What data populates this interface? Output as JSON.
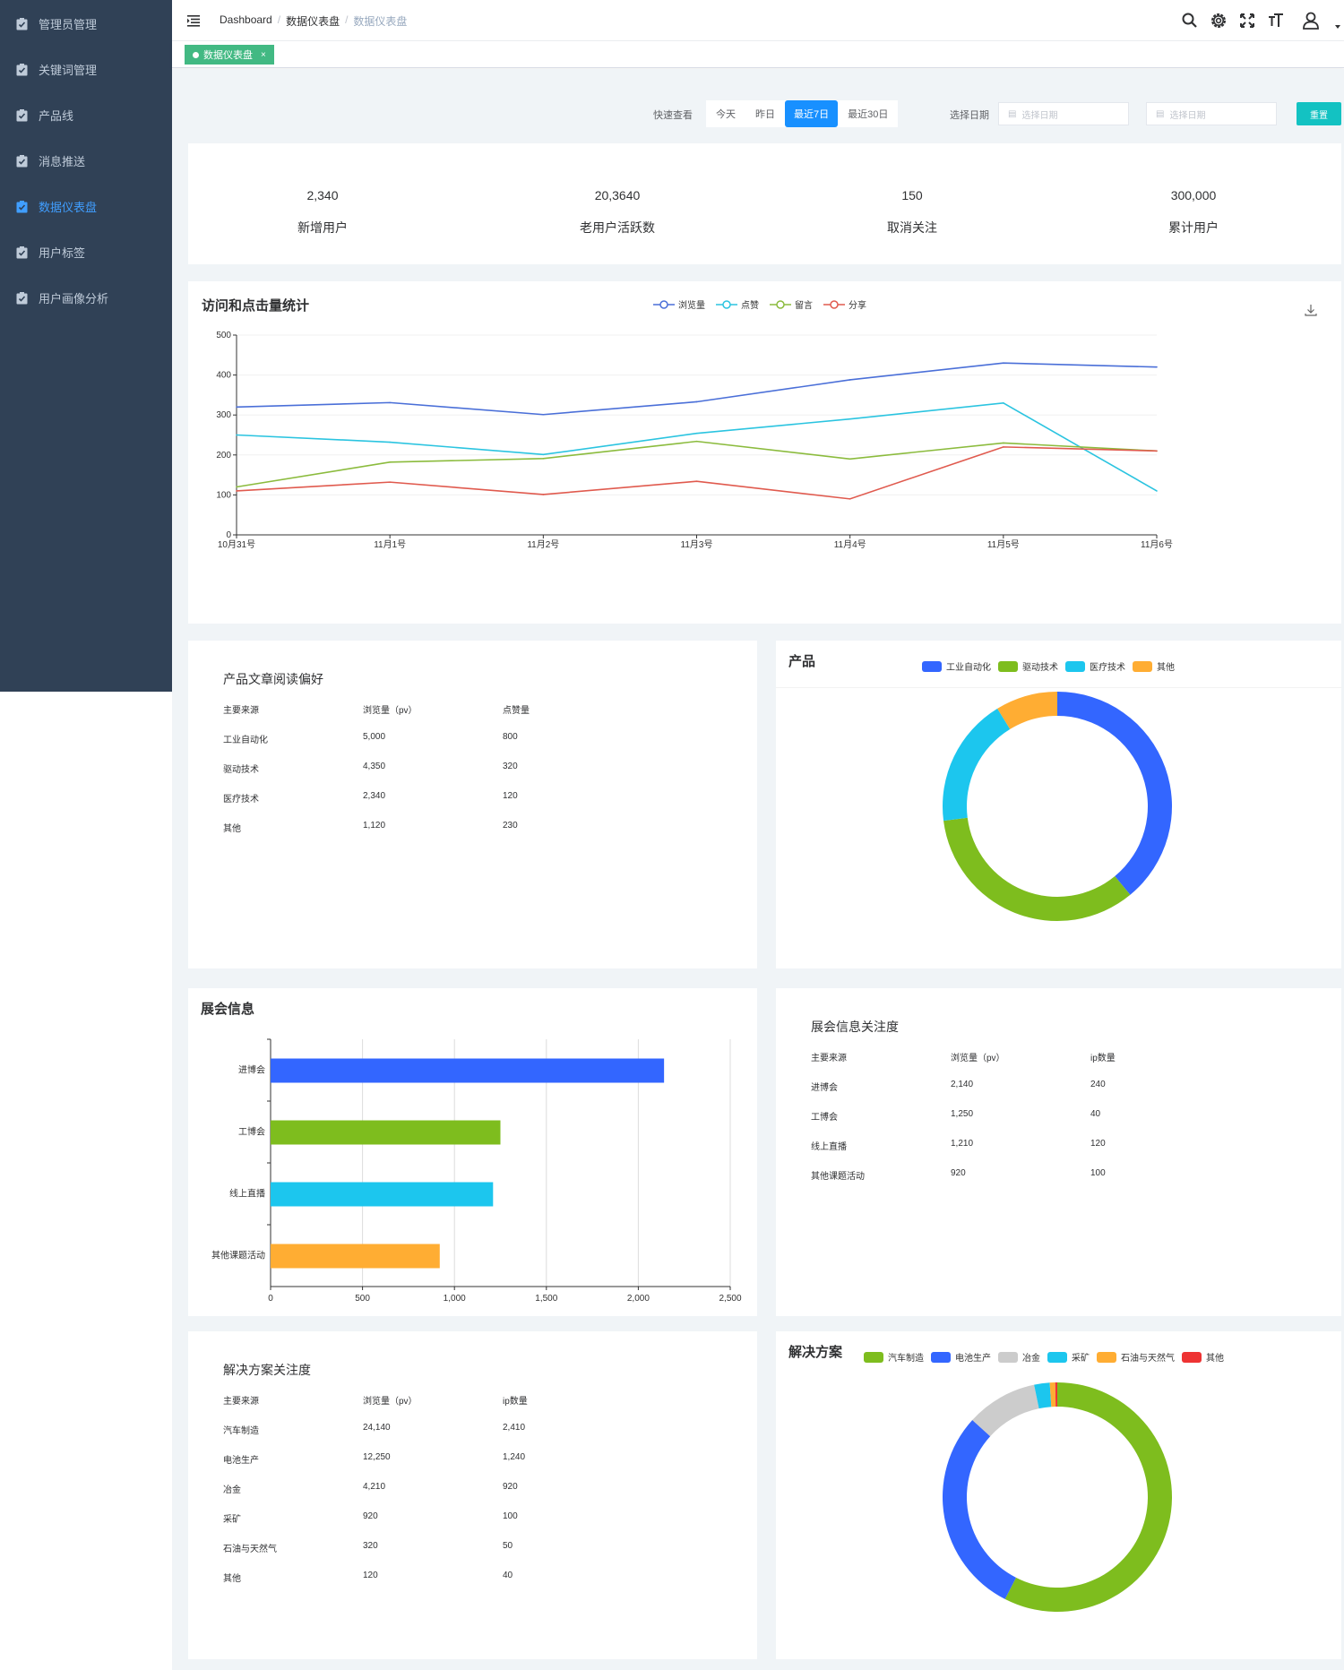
{
  "sidebar": {
    "items": [
      {
        "label": "管理员管理",
        "active": false
      },
      {
        "label": "关键词管理",
        "active": false
      },
      {
        "label": "产品线",
        "active": false
      },
      {
        "label": "消息推送",
        "active": false
      },
      {
        "label": "数据仪表盘",
        "active": true
      },
      {
        "label": "用户标签",
        "active": false
      },
      {
        "label": "用户画像分析",
        "active": false
      }
    ]
  },
  "breadcrumb": {
    "root": "Dashboard",
    "parent": "数据仪表盘",
    "current": "数据仪表盘"
  },
  "tags": {
    "active_tag": "数据仪表盘",
    "close_glyph": "×"
  },
  "filter": {
    "quick_label": "快速查看",
    "ranges": [
      "今天",
      "昨日",
      "最近7日",
      "最近30日"
    ],
    "active_range": "最近7日",
    "date_label": "选择日期",
    "start_placeholder": "选择日期",
    "end_placeholder": "选择日期",
    "reset_label": "重置"
  },
  "stats": [
    {
      "value": "2,340",
      "label": "新增用户"
    },
    {
      "value": "20,3640",
      "label": "老用户活跃数"
    },
    {
      "value": "150",
      "label": "取消关注"
    },
    {
      "value": "300,000",
      "label": "累计用户"
    }
  ],
  "colors": {
    "blue": "#3366ff",
    "green": "#7ebd1e",
    "cyan": "#1cc6ee",
    "orange": "#ffad33",
    "gray": "#cccccc",
    "red": "#ee3333",
    "line_blue": "#4a6fd8",
    "line_cyan": "#2bc4e0",
    "line_green": "#8bbb3d",
    "line_red": "#e05a4e"
  },
  "visits_chart": {
    "title": "访问和点击量统计",
    "download_icon": "download-icon",
    "chart_data": {
      "type": "line",
      "x": [
        "10月31号",
        "11月1号",
        "11月2号",
        "11月3号",
        "11月4号",
        "11月5号",
        "11月6号"
      ],
      "ylim": [
        0,
        500
      ],
      "yticks": [
        "0",
        "100",
        "200",
        "300",
        "400",
        "500"
      ],
      "series": [
        {
          "name": "浏览量",
          "values": [
            320,
            331,
            301,
            333,
            388,
            430,
            420
          ],
          "color": "#4a6fd8"
        },
        {
          "name": "点赞",
          "values": [
            250,
            232,
            201,
            254,
            290,
            330,
            110
          ],
          "color": "#2bc4e0"
        },
        {
          "name": "留言",
          "values": [
            120,
            182,
            191,
            234,
            190,
            230,
            210
          ],
          "color": "#8bbb3d"
        },
        {
          "name": "分享",
          "values": [
            110,
            132,
            101,
            134,
            90,
            220,
            210
          ],
          "color": "#e05a4e"
        }
      ],
      "grid": true,
      "legend": "top-center"
    }
  },
  "product_table": {
    "title": "产品文章阅读偏好",
    "headers": [
      "主要来源",
      "浏览量（pv）",
      "点赞量"
    ],
    "rows": [
      [
        "工业自动化",
        "5,000",
        "800"
      ],
      [
        "驱动技术",
        "4,350",
        "320"
      ],
      [
        "医疗技术",
        "2,340",
        "120"
      ],
      [
        "其他",
        "1,120",
        "230"
      ]
    ]
  },
  "product_chart": {
    "title": "产品",
    "chart_data": {
      "type": "pie",
      "categories": [
        "工业自动化",
        "驱动技术",
        "医疗技术",
        "其他"
      ],
      "values": [
        5000,
        4350,
        2340,
        1120
      ],
      "colors": [
        "#3366ff",
        "#7ebd1e",
        "#1cc6ee",
        "#ffad33"
      ],
      "legend": "top"
    }
  },
  "expo_chart": {
    "title": "展会信息",
    "chart_data": {
      "type": "bar",
      "orientation": "horizontal",
      "categories": [
        "进博会",
        "工博会",
        "线上直播",
        "其他课题活动"
      ],
      "values": [
        2140,
        1250,
        1210,
        920
      ],
      "colors": [
        "#3366ff",
        "#7ebd1e",
        "#1cc6ee",
        "#ffad33"
      ],
      "xlim": [
        0,
        2500
      ],
      "xticks": [
        "0",
        "500",
        "1,000",
        "1,500",
        "2,000",
        "2,500"
      ],
      "grid": true
    }
  },
  "expo_table": {
    "title": "展会信息关注度",
    "headers": [
      "主要来源",
      "浏览量（pv）",
      "ip数量"
    ],
    "rows": [
      [
        "进博会",
        "2,140",
        "240"
      ],
      [
        "工博会",
        "1,250",
        "40"
      ],
      [
        "线上直播",
        "1,210",
        "120"
      ],
      [
        "其他课题活动",
        "920",
        "100"
      ]
    ]
  },
  "solution_table": {
    "title": "解决方案关注度",
    "headers": [
      "主要来源",
      "浏览量（pv）",
      "ip数量"
    ],
    "rows": [
      [
        "汽车制造",
        "24,140",
        "2,410"
      ],
      [
        "电池生产",
        "12,250",
        "1,240"
      ],
      [
        "冶金",
        "4,210",
        "920"
      ],
      [
        "采矿",
        "920",
        "100"
      ],
      [
        "石油与天然气",
        "320",
        "50"
      ],
      [
        "其他",
        "120",
        "40"
      ]
    ]
  },
  "solution_chart": {
    "title": "解决方案",
    "chart_data": {
      "type": "pie",
      "categories": [
        "汽车制造",
        "电池生产",
        "冶金",
        "采矿",
        "石油与天然气",
        "其他"
      ],
      "values": [
        24140,
        12250,
        4210,
        920,
        320,
        120
      ],
      "colors": [
        "#7ebd1e",
        "#3366ff",
        "#cccccc",
        "#1cc6ee",
        "#ffad33",
        "#ee3333"
      ],
      "legend": "top"
    }
  }
}
